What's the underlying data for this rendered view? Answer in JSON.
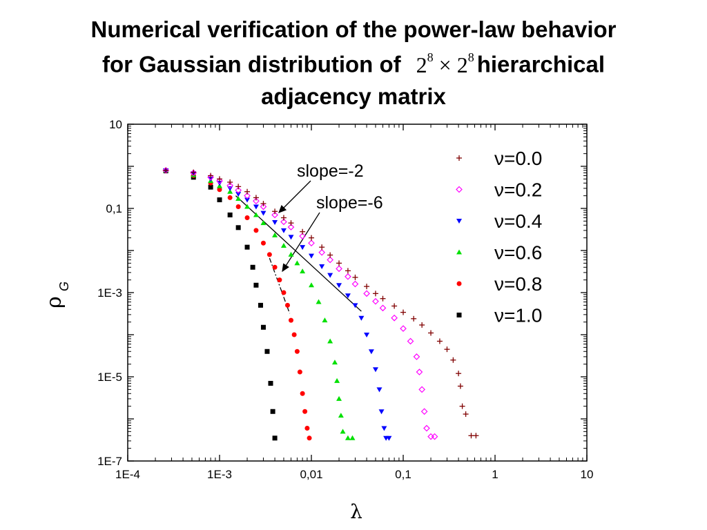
{
  "title": {
    "line1": "Numerical verification of the power-law behavior",
    "line2_before": "for Gaussian distribution of",
    "math_base": "2",
    "math_exp": "8",
    "math_times": "×",
    "line2_after": "hierarchical",
    "line3": "adjacency matrix"
  },
  "chart_data": {
    "type": "scatter",
    "xscale": "log",
    "yscale": "log",
    "xlim": [
      0.0001,
      10
    ],
    "ylim": [
      1e-07,
      10
    ],
    "xlabel": "λ",
    "ylabel": "ρ",
    "ylabel_sub": "G",
    "xticks": [
      {
        "value": 0.0001,
        "label": "1E-4"
      },
      {
        "value": 0.001,
        "label": "1E-3"
      },
      {
        "value": 0.01,
        "label": "0,01"
      },
      {
        "value": 0.1,
        "label": "0,1"
      },
      {
        "value": 1,
        "label": "1"
      },
      {
        "value": 10,
        "label": "10"
      }
    ],
    "yticks": [
      {
        "value": 10,
        "label": "10"
      },
      {
        "value": 0.1,
        "label": "0,1"
      },
      {
        "value": 0.001,
        "label": "1E-3"
      },
      {
        "value": 1e-05,
        "label": "1E-5"
      },
      {
        "value": 1e-07,
        "label": "1E-7"
      }
    ],
    "grid": false,
    "legend_position": "top-right",
    "series": [
      {
        "name": "ν=0.0",
        "marker": "plus",
        "color": "#800000",
        "points": [
          [
            0.00026,
            0.8
          ],
          [
            0.00052,
            0.72
          ],
          [
            0.0008,
            0.6
          ],
          [
            0.001,
            0.5
          ],
          [
            0.0013,
            0.42
          ],
          [
            0.0016,
            0.33
          ],
          [
            0.002,
            0.25
          ],
          [
            0.0025,
            0.18
          ],
          [
            0.003,
            0.13
          ],
          [
            0.004,
            0.085
          ],
          [
            0.005,
            0.06
          ],
          [
            0.006,
            0.045
          ],
          [
            0.008,
            0.028
          ],
          [
            0.01,
            0.02
          ],
          [
            0.013,
            0.012
          ],
          [
            0.016,
            0.0078
          ],
          [
            0.02,
            0.005
          ],
          [
            0.025,
            0.0033
          ],
          [
            0.03,
            0.0023
          ],
          [
            0.04,
            0.0014
          ],
          [
            0.05,
            0.00095
          ],
          [
            0.06,
            0.00072
          ],
          [
            0.08,
            0.00048
          ],
          [
            0.1,
            0.00034
          ],
          [
            0.13,
            0.00024
          ],
          [
            0.16,
            0.00017
          ],
          [
            0.2,
            0.00011
          ],
          [
            0.25,
            7e-05
          ],
          [
            0.3,
            4.5e-05
          ],
          [
            0.35,
            2.5e-05
          ],
          [
            0.4,
            1.2e-05
          ],
          [
            0.42,
            6e-06
          ],
          [
            0.44,
            2e-06
          ],
          [
            0.48,
            1.3e-06
          ],
          [
            0.55,
            4e-07
          ],
          [
            0.62,
            4e-07
          ]
        ]
      },
      {
        "name": "ν=0.2",
        "marker": "diamond",
        "color": "#ff00ff",
        "points": [
          [
            0.00026,
            0.8
          ],
          [
            0.00052,
            0.7
          ],
          [
            0.0008,
            0.55
          ],
          [
            0.001,
            0.45
          ],
          [
            0.0013,
            0.35
          ],
          [
            0.0016,
            0.27
          ],
          [
            0.002,
            0.2
          ],
          [
            0.0025,
            0.15
          ],
          [
            0.003,
            0.11
          ],
          [
            0.004,
            0.07
          ],
          [
            0.005,
            0.048
          ],
          [
            0.006,
            0.036
          ],
          [
            0.008,
            0.022
          ],
          [
            0.01,
            0.015
          ],
          [
            0.013,
            0.009
          ],
          [
            0.016,
            0.006
          ],
          [
            0.02,
            0.0037
          ],
          [
            0.025,
            0.0024
          ],
          [
            0.03,
            0.0016
          ],
          [
            0.04,
            0.00095
          ],
          [
            0.05,
            0.00062
          ],
          [
            0.06,
            0.00043
          ],
          [
            0.08,
            0.00025
          ],
          [
            0.1,
            0.00014
          ],
          [
            0.12,
            7e-05
          ],
          [
            0.14,
            3e-05
          ],
          [
            0.15,
            1.3e-05
          ],
          [
            0.16,
            5e-06
          ],
          [
            0.17,
            1.5e-06
          ],
          [
            0.18,
            6e-07
          ],
          [
            0.2,
            3.8e-07
          ],
          [
            0.22,
            3.8e-07
          ]
        ]
      },
      {
        "name": "ν=0.4",
        "marker": "triangle-down",
        "color": "#0000ff",
        "points": [
          [
            0.00026,
            0.8
          ],
          [
            0.00052,
            0.68
          ],
          [
            0.0008,
            0.5
          ],
          [
            0.001,
            0.4
          ],
          [
            0.0013,
            0.3
          ],
          [
            0.0016,
            0.22
          ],
          [
            0.002,
            0.16
          ],
          [
            0.0025,
            0.11
          ],
          [
            0.003,
            0.078
          ],
          [
            0.004,
            0.047
          ],
          [
            0.005,
            0.03
          ],
          [
            0.006,
            0.021
          ],
          [
            0.008,
            0.012
          ],
          [
            0.01,
            0.0075
          ],
          [
            0.013,
            0.0042
          ],
          [
            0.016,
            0.0026
          ],
          [
            0.02,
            0.0015
          ],
          [
            0.025,
            0.00085
          ],
          [
            0.03,
            0.0005
          ],
          [
            0.035,
            0.00025
          ],
          [
            0.04,
            0.0001
          ],
          [
            0.045,
            4e-05
          ],
          [
            0.05,
            1.5e-05
          ],
          [
            0.055,
            5e-06
          ],
          [
            0.058,
            1.5e-06
          ],
          [
            0.062,
            6e-07
          ],
          [
            0.065,
            3.5e-07
          ],
          [
            0.07,
            3.5e-07
          ]
        ]
      },
      {
        "name": "ν=0.6",
        "marker": "triangle-up",
        "color": "#00e000",
        "points": [
          [
            0.00026,
            0.8
          ],
          [
            0.00052,
            0.62
          ],
          [
            0.0008,
            0.45
          ],
          [
            0.001,
            0.34
          ],
          [
            0.0013,
            0.25
          ],
          [
            0.0016,
            0.17
          ],
          [
            0.002,
            0.11
          ],
          [
            0.0025,
            0.07
          ],
          [
            0.003,
            0.045
          ],
          [
            0.004,
            0.023
          ],
          [
            0.005,
            0.013
          ],
          [
            0.006,
            0.008
          ],
          [
            0.007,
            0.005
          ],
          [
            0.008,
            0.0032
          ],
          [
            0.01,
            0.0015
          ],
          [
            0.012,
            0.0006
          ],
          [
            0.014,
            0.00022
          ],
          [
            0.016,
            7e-05
          ],
          [
            0.018,
            2.2e-05
          ],
          [
            0.019,
            8e-06
          ],
          [
            0.02,
            3e-06
          ],
          [
            0.021,
            1.2e-06
          ],
          [
            0.022,
            5e-07
          ],
          [
            0.025,
            3.5e-07
          ],
          [
            0.028,
            3.5e-07
          ]
        ]
      },
      {
        "name": "ν=0.8",
        "marker": "circle",
        "color": "#ff0000",
        "points": [
          [
            0.00026,
            0.8
          ],
          [
            0.00052,
            0.6
          ],
          [
            0.0008,
            0.4
          ],
          [
            0.001,
            0.28
          ],
          [
            0.0013,
            0.18
          ],
          [
            0.0016,
            0.11
          ],
          [
            0.002,
            0.06
          ],
          [
            0.0025,
            0.03
          ],
          [
            0.003,
            0.015
          ],
          [
            0.0035,
            0.008
          ],
          [
            0.004,
            0.004
          ],
          [
            0.0045,
            0.002
          ],
          [
            0.005,
            0.001
          ],
          [
            0.0055,
            0.0005
          ],
          [
            0.006,
            0.00022
          ],
          [
            0.0065,
            0.0001
          ],
          [
            0.007,
            4e-05
          ],
          [
            0.0075,
            1.3e-05
          ],
          [
            0.008,
            4e-06
          ],
          [
            0.0085,
            1.5e-06
          ],
          [
            0.009,
            6e-07
          ],
          [
            0.0095,
            3.5e-07
          ]
        ]
      },
      {
        "name": "ν=1.0",
        "marker": "square",
        "color": "#000000",
        "points": [
          [
            0.00026,
            0.78
          ],
          [
            0.00052,
            0.55
          ],
          [
            0.0008,
            0.32
          ],
          [
            0.001,
            0.16
          ],
          [
            0.0013,
            0.07
          ],
          [
            0.0016,
            0.035
          ],
          [
            0.002,
            0.012
          ],
          [
            0.0023,
            0.004
          ],
          [
            0.0025,
            0.0015
          ],
          [
            0.0028,
            0.0005
          ],
          [
            0.003,
            0.00015
          ],
          [
            0.0033,
            4e-05
          ],
          [
            0.0036,
            7e-06
          ],
          [
            0.0038,
            1.5e-06
          ],
          [
            0.004,
            3.5e-07
          ]
        ]
      }
    ],
    "reference_lines": [
      {
        "label": "slope=-2",
        "style": "solid",
        "from": [
          0.0015,
          0.2
        ],
        "to": [
          0.035,
          0.00036
        ]
      },
      {
        "label": "slope=-6",
        "style": "dash-dot",
        "from": [
          0.0035,
          0.0066
        ],
        "to": [
          0.0058,
          0.00032
        ]
      }
    ],
    "annotations": [
      {
        "text": "slope=-2",
        "target_line": 0
      },
      {
        "text": "slope=-6",
        "target_line": 1
      }
    ]
  }
}
